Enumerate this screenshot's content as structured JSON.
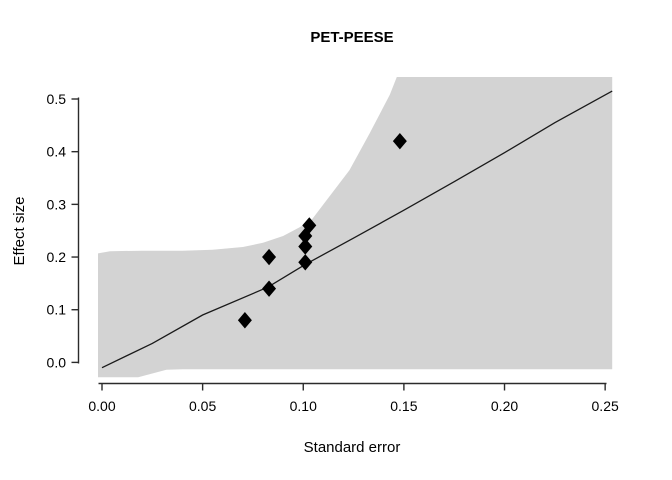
{
  "title": "PET-PEESE",
  "axes": {
    "xlabel": "Standard error",
    "ylabel": "Effect size"
  },
  "chart_data": {
    "type": "scatter",
    "title": "PET-PEESE",
    "xlabel": "Standard error",
    "ylabel": "Effect size",
    "xlim": [
      0,
      0.25
    ],
    "ylim": [
      0,
      0.5
    ],
    "grid": false,
    "legend": null,
    "x_ticks": [
      {
        "value": 0.0,
        "label": "0.00"
      },
      {
        "value": 0.05,
        "label": "0.05"
      },
      {
        "value": 0.1,
        "label": "0.10"
      },
      {
        "value": 0.15,
        "label": "0.15"
      },
      {
        "value": 0.2,
        "label": "0.20"
      },
      {
        "value": 0.25,
        "label": "0.25"
      }
    ],
    "y_ticks": [
      {
        "value": 0.0,
        "label": "0.0"
      },
      {
        "value": 0.1,
        "label": "0.1"
      },
      {
        "value": 0.2,
        "label": "0.2"
      },
      {
        "value": 0.3,
        "label": "0.3"
      },
      {
        "value": 0.4,
        "label": "0.4"
      },
      {
        "value": 0.5,
        "label": "0.5"
      }
    ],
    "points": [
      {
        "x": 0.071,
        "y": 0.08
      },
      {
        "x": 0.083,
        "y": 0.14
      },
      {
        "x": 0.083,
        "y": 0.2
      },
      {
        "x": 0.101,
        "y": 0.19
      },
      {
        "x": 0.101,
        "y": 0.22
      },
      {
        "x": 0.101,
        "y": 0.24
      },
      {
        "x": 0.103,
        "y": 0.26
      },
      {
        "x": 0.148,
        "y": 0.42
      }
    ],
    "point_marker": "filled-diamond",
    "regression_line": [
      {
        "x": 0.0,
        "y": -0.01
      },
      {
        "x": 0.025,
        "y": 0.036
      },
      {
        "x": 0.05,
        "y": 0.09
      },
      {
        "x": 0.0825,
        "y": 0.143
      },
      {
        "x": 0.101,
        "y": 0.186
      },
      {
        "x": 0.125,
        "y": 0.236
      },
      {
        "x": 0.15,
        "y": 0.289
      },
      {
        "x": 0.175,
        "y": 0.343
      },
      {
        "x": 0.2,
        "y": 0.398
      },
      {
        "x": 0.225,
        "y": 0.455
      },
      {
        "x": 0.2535,
        "y": 0.515
      }
    ],
    "ci_region": {
      "upper": [
        {
          "x": -0.002,
          "y": 0.207
        },
        {
          "x": 0.004,
          "y": 0.211
        },
        {
          "x": 0.02,
          "y": 0.212
        },
        {
          "x": 0.04,
          "y": 0.212
        },
        {
          "x": 0.055,
          "y": 0.214
        },
        {
          "x": 0.07,
          "y": 0.219
        },
        {
          "x": 0.08,
          "y": 0.227
        },
        {
          "x": 0.09,
          "y": 0.24
        },
        {
          "x": 0.098,
          "y": 0.256
        },
        {
          "x": 0.104,
          "y": 0.27
        },
        {
          "x": 0.113,
          "y": 0.315
        },
        {
          "x": 0.123,
          "y": 0.365
        },
        {
          "x": 0.133,
          "y": 0.435
        },
        {
          "x": 0.143,
          "y": 0.508
        },
        {
          "x": 0.1465,
          "y": 0.5417
        },
        {
          "x": 0.2535,
          "y": 0.5417
        }
      ],
      "lower": [
        {
          "x": -0.002,
          "y": -0.028
        },
        {
          "x": 0.018,
          "y": -0.028
        },
        {
          "x": 0.025,
          "y": -0.021
        },
        {
          "x": 0.032,
          "y": -0.014
        },
        {
          "x": 0.04,
          "y": -0.013
        },
        {
          "x": 0.2535,
          "y": -0.013
        }
      ]
    },
    "colors": {
      "ci_region": "#d3d3d3",
      "regression_line": "#1a1a1a",
      "points": "#000000",
      "axis": "#2b2b2b"
    }
  }
}
